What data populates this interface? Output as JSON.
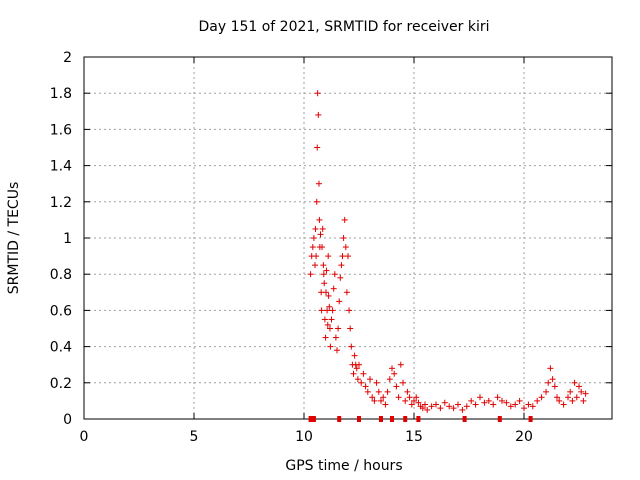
{
  "chart_data": {
    "type": "scatter",
    "title": "Day 151 of 2021, SRMTID for receiver kiri",
    "xlabel": "GPS time / hours",
    "ylabel": "SRMTID / TECUs",
    "xlim": [
      0,
      24
    ],
    "ylim": [
      0,
      2
    ],
    "xticks": [
      0,
      5,
      10,
      15,
      20
    ],
    "xtick_labels": [
      "0",
      "5",
      "10",
      "15",
      "20"
    ],
    "yticks": [
      0,
      0.2,
      0.4,
      0.6,
      0.8,
      1.0,
      1.2,
      1.4,
      1.6,
      1.8,
      2.0
    ],
    "ytick_labels": [
      "0",
      "0.2",
      "0.4",
      "0.6",
      "0.8",
      "1",
      "1.2",
      "1.4",
      "1.6",
      "1.8",
      "2"
    ],
    "grid": true,
    "marker": "+",
    "color": "#e00000",
    "series": [
      {
        "name": "SRMTID",
        "x": [
          10.3,
          10.35,
          10.4,
          10.45,
          10.5,
          10.52,
          10.55,
          10.58,
          10.6,
          10.62,
          10.65,
          10.68,
          10.7,
          10.72,
          10.75,
          10.78,
          10.8,
          10.82,
          10.85,
          10.88,
          10.9,
          10.92,
          10.95,
          10.98,
          11.0,
          11.02,
          11.05,
          11.08,
          11.1,
          11.12,
          11.15,
          11.18,
          11.2,
          11.25,
          11.3,
          11.35,
          11.4,
          11.45,
          11.5,
          11.55,
          11.6,
          11.65,
          11.7,
          11.75,
          11.8,
          11.85,
          11.9,
          11.95,
          12.0,
          12.05,
          12.1,
          12.15,
          12.2,
          12.25,
          12.3,
          12.35,
          12.4,
          12.45,
          12.5,
          12.6,
          12.7,
          12.8,
          12.9,
          13.0,
          13.1,
          13.2,
          13.3,
          13.4,
          13.5,
          13.6,
          13.7,
          13.8,
          13.9,
          14.0,
          14.1,
          14.2,
          14.3,
          14.4,
          14.5,
          14.6,
          14.7,
          14.8,
          14.9,
          15.0,
          15.1,
          15.2,
          15.3,
          15.4,
          15.5,
          15.6,
          15.8,
          16.0,
          16.2,
          16.4,
          16.6,
          16.8,
          17.0,
          17.2,
          17.4,
          17.6,
          17.8,
          18.0,
          18.2,
          18.4,
          18.6,
          18.8,
          19.0,
          19.2,
          19.4,
          19.6,
          19.8,
          20.0,
          20.2,
          20.4,
          20.6,
          20.8,
          21.0,
          21.1,
          21.2,
          21.3,
          21.4,
          21.5,
          21.6,
          21.8,
          22.0,
          22.1,
          22.2,
          22.3,
          22.4,
          22.5,
          22.6,
          22.7,
          22.8
        ],
        "y": [
          0.8,
          0.9,
          0.95,
          1.0,
          0.85,
          1.05,
          0.9,
          1.2,
          1.5,
          1.8,
          1.68,
          1.3,
          1.1,
          0.95,
          1.02,
          0.7,
          0.6,
          0.95,
          1.05,
          0.85,
          0.8,
          0.75,
          0.55,
          0.45,
          0.7,
          0.82,
          0.6,
          0.52,
          0.9,
          0.68,
          0.62,
          0.5,
          0.4,
          0.55,
          0.6,
          0.72,
          0.8,
          0.45,
          0.38,
          0.5,
          0.65,
          0.78,
          0.85,
          0.9,
          1.0,
          1.1,
          0.95,
          0.7,
          0.9,
          0.6,
          0.5,
          0.4,
          0.3,
          0.25,
          0.35,
          0.3,
          0.28,
          0.22,
          0.3,
          0.2,
          0.25,
          0.18,
          0.15,
          0.22,
          0.12,
          0.1,
          0.2,
          0.15,
          0.1,
          0.12,
          0.08,
          0.15,
          0.22,
          0.28,
          0.25,
          0.18,
          0.12,
          0.3,
          0.2,
          0.1,
          0.15,
          0.12,
          0.08,
          0.1,
          0.12,
          0.09,
          0.07,
          0.06,
          0.08,
          0.05,
          0.07,
          0.08,
          0.06,
          0.09,
          0.07,
          0.06,
          0.08,
          0.05,
          0.07,
          0.1,
          0.08,
          0.12,
          0.09,
          0.1,
          0.08,
          0.12,
          0.1,
          0.09,
          0.07,
          0.08,
          0.1,
          0.06,
          0.08,
          0.07,
          0.1,
          0.12,
          0.15,
          0.2,
          0.28,
          0.22,
          0.18,
          0.12,
          0.1,
          0.08,
          0.12,
          0.15,
          0.1,
          0.2,
          0.12,
          0.18,
          0.15,
          0.1,
          0.14
        ]
      }
    ],
    "baseline_markers_x": [
      10.3,
      10.45,
      11.6,
      12.5,
      13.5,
      14.0,
      14.6,
      15.2,
      17.3,
      18.9,
      20.3
    ]
  }
}
